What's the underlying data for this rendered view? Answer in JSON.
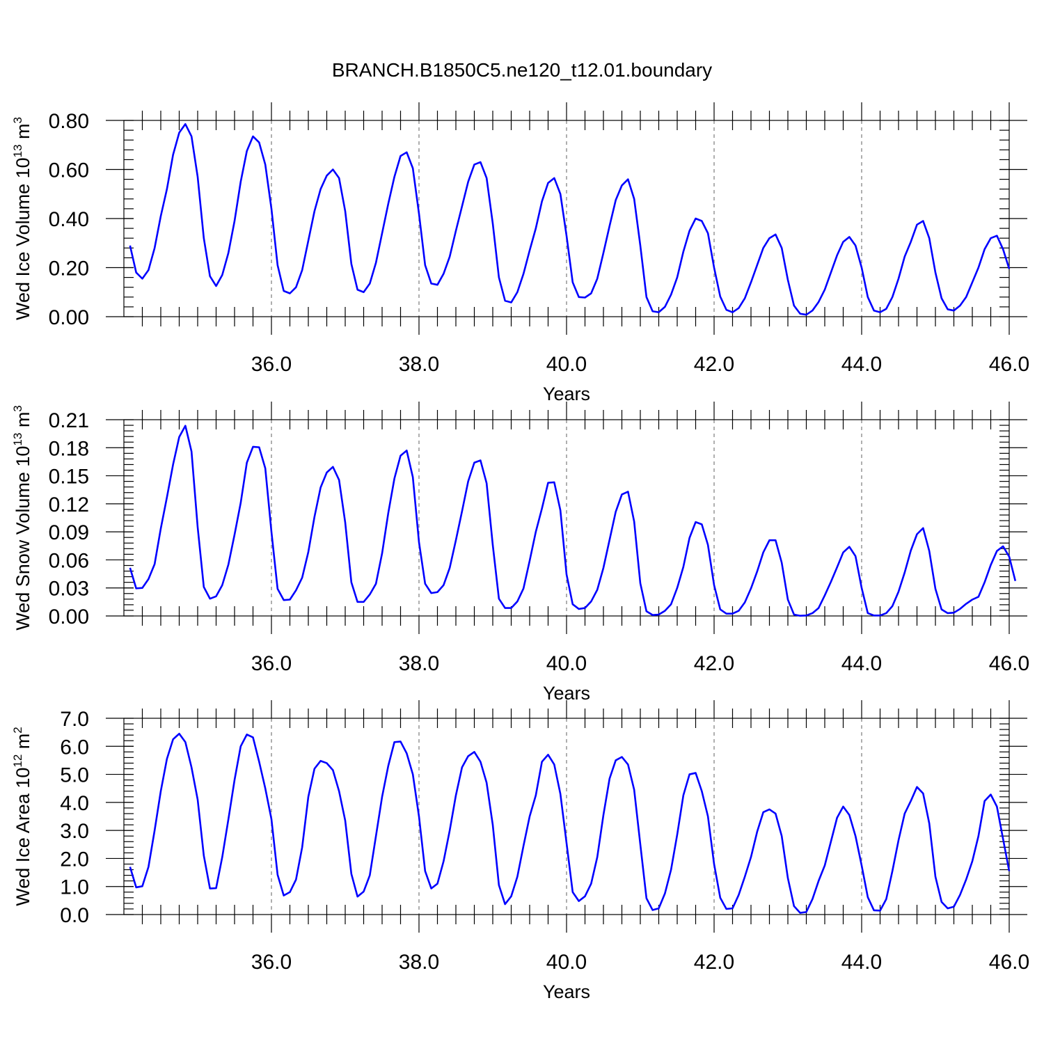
{
  "title": "BRANCH.B1850C5.ne120_t12.01.boundary",
  "chart_data": [
    {
      "type": "line",
      "xlabel": "Years",
      "ylabel": {
        "text": "Wed Ice Volume 10",
        "sup": "13",
        "unit": " m",
        "unit_sup": "3"
      },
      "xlim": [
        34.0,
        46.0
      ],
      "ylim": [
        0.0,
        0.8
      ],
      "x_ticks": [
        36.0,
        38.0,
        40.0,
        42.0,
        44.0,
        46.0
      ],
      "x_tick_labels": [
        "36.0",
        "38.0",
        "40.0",
        "42.0",
        "44.0",
        "46.0"
      ],
      "y_ticks": [
        0.0,
        0.2,
        0.4,
        0.6,
        0.8
      ],
      "y_tick_labels": [
        "0.00",
        "0.20",
        "0.40",
        "0.60",
        "0.80"
      ],
      "y_minor_step": 0.04,
      "grid": "dashed vertical lines at major x ticks",
      "color": "#0000ff",
      "x_start": 34.0833,
      "x_step": 0.083333,
      "values": [
        0.29,
        0.18,
        0.155,
        0.19,
        0.28,
        0.41,
        0.52,
        0.66,
        0.75,
        0.785,
        0.735,
        0.57,
        0.32,
        0.165,
        0.125,
        0.17,
        0.26,
        0.39,
        0.55,
        0.675,
        0.735,
        0.71,
        0.62,
        0.44,
        0.21,
        0.105,
        0.095,
        0.12,
        0.19,
        0.31,
        0.43,
        0.52,
        0.575,
        0.6,
        0.565,
        0.43,
        0.215,
        0.11,
        0.1,
        0.135,
        0.22,
        0.34,
        0.46,
        0.57,
        0.655,
        0.67,
        0.605,
        0.42,
        0.21,
        0.135,
        0.13,
        0.175,
        0.245,
        0.35,
        0.45,
        0.55,
        0.62,
        0.63,
        0.565,
        0.38,
        0.16,
        0.065,
        0.058,
        0.1,
        0.175,
        0.27,
        0.36,
        0.47,
        0.545,
        0.565,
        0.5,
        0.33,
        0.14,
        0.08,
        0.078,
        0.095,
        0.155,
        0.26,
        0.37,
        0.475,
        0.535,
        0.56,
        0.48,
        0.29,
        0.08,
        0.022,
        0.018,
        0.04,
        0.09,
        0.16,
        0.265,
        0.35,
        0.4,
        0.39,
        0.34,
        0.2,
        0.082,
        0.028,
        0.018,
        0.035,
        0.075,
        0.14,
        0.21,
        0.28,
        0.32,
        0.335,
        0.28,
        0.15,
        0.045,
        0.012,
        0.008,
        0.025,
        0.06,
        0.11,
        0.18,
        0.25,
        0.305,
        0.325,
        0.29,
        0.2,
        0.08,
        0.025,
        0.018,
        0.032,
        0.08,
        0.155,
        0.245,
        0.305,
        0.375,
        0.39,
        0.32,
        0.18,
        0.075,
        0.03,
        0.025,
        0.045,
        0.08,
        0.14,
        0.2,
        0.275,
        0.32,
        0.33,
        0.275,
        0.195
      ]
    },
    {
      "type": "line",
      "xlabel": "Years",
      "ylabel": {
        "text": "Wed Snow Volume 10",
        "sup": "13",
        "unit": " m",
        "unit_sup": "3"
      },
      "xlim": [
        34.0,
        46.0
      ],
      "ylim": [
        0.0,
        0.21
      ],
      "x_ticks": [
        36.0,
        38.0,
        40.0,
        42.0,
        44.0,
        46.0
      ],
      "x_tick_labels": [
        "36.0",
        "38.0",
        "40.0",
        "42.0",
        "44.0",
        "46.0"
      ],
      "y_ticks": [
        0.0,
        0.03,
        0.06,
        0.09,
        0.12,
        0.15,
        0.18,
        0.21
      ],
      "y_tick_labels": [
        "0.00",
        "0.03",
        "0.06",
        "0.09",
        "0.12",
        "0.15",
        "0.18",
        "0.21"
      ],
      "y_minor_step": 0.006,
      "grid": "dashed vertical lines at major x ticks",
      "color": "#0000ff",
      "x_start": 34.0833,
      "x_step": 0.083333,
      "values": [
        0.0515,
        0.0295,
        0.03,
        0.0395,
        0.0555,
        0.0935,
        0.127,
        0.162,
        0.1915,
        0.2035,
        0.176,
        0.095,
        0.031,
        0.0185,
        0.021,
        0.033,
        0.055,
        0.087,
        0.121,
        0.164,
        0.181,
        0.1805,
        0.158,
        0.09,
        0.029,
        0.017,
        0.0175,
        0.0275,
        0.041,
        0.0685,
        0.106,
        0.1375,
        0.1535,
        0.1595,
        0.1455,
        0.1,
        0.036,
        0.015,
        0.015,
        0.023,
        0.0345,
        0.067,
        0.11,
        0.147,
        0.1715,
        0.177,
        0.1485,
        0.079,
        0.0345,
        0.0245,
        0.0255,
        0.033,
        0.0515,
        0.081,
        0.112,
        0.144,
        0.164,
        0.1665,
        0.142,
        0.076,
        0.0185,
        0.0085,
        0.0085,
        0.0155,
        0.0295,
        0.059,
        0.09,
        0.115,
        0.1425,
        0.143,
        0.113,
        0.0445,
        0.0125,
        0.0075,
        0.0085,
        0.0155,
        0.028,
        0.0515,
        0.0815,
        0.1115,
        0.13,
        0.133,
        0.101,
        0.035,
        0.005,
        0.001,
        0.0015,
        0.0055,
        0.0125,
        0.03,
        0.0525,
        0.0835,
        0.1005,
        0.098,
        0.076,
        0.033,
        0.007,
        0.0025,
        0.0025,
        0.0055,
        0.0145,
        0.0295,
        0.0475,
        0.068,
        0.081,
        0.081,
        0.057,
        0.0175,
        0.0015,
        0.0002,
        0.0005,
        0.003,
        0.0085,
        0.022,
        0.0365,
        0.052,
        0.068,
        0.074,
        0.064,
        0.03,
        0.003,
        0.0005,
        0.0005,
        0.003,
        0.0105,
        0.026,
        0.0465,
        0.07,
        0.0875,
        0.094,
        0.0695,
        0.029,
        0.007,
        0.003,
        0.0035,
        0.0075,
        0.013,
        0.0175,
        0.0205,
        0.036,
        0.0545,
        0.0695,
        0.0745,
        0.0635,
        0.0375
      ]
    },
    {
      "type": "line",
      "xlabel": "Years",
      "ylabel": {
        "text": "Wed Ice Area 10",
        "sup": "12",
        "unit": " m",
        "unit_sup": "2"
      },
      "xlim": [
        34.0,
        46.0
      ],
      "ylim": [
        0.0,
        7.0
      ],
      "x_ticks": [
        36.0,
        38.0,
        40.0,
        42.0,
        44.0,
        46.0
      ],
      "x_tick_labels": [
        "36.0",
        "38.0",
        "40.0",
        "42.0",
        "44.0",
        "46.0"
      ],
      "y_ticks": [
        0.0,
        1.0,
        2.0,
        3.0,
        4.0,
        5.0,
        6.0,
        7.0
      ],
      "y_tick_labels": [
        "0.0",
        "1.0",
        "2.0",
        "3.0",
        "4.0",
        "5.0",
        "6.0",
        "7.0"
      ],
      "y_minor_step": 0.2,
      "grid": "dashed vertical lines at major x ticks",
      "color": "#0000ff",
      "x_start": 34.0833,
      "x_step": 0.083333,
      "values": [
        1.7,
        0.97,
        1.01,
        1.7,
        3.0,
        4.4,
        5.55,
        6.25,
        6.45,
        6.15,
        5.25,
        4.1,
        2.1,
        0.93,
        0.94,
        2.05,
        3.4,
        4.8,
        6.0,
        6.42,
        6.32,
        5.45,
        4.5,
        3.4,
        1.42,
        0.68,
        0.8,
        1.25,
        2.4,
        4.2,
        5.2,
        5.48,
        5.4,
        5.15,
        4.4,
        3.35,
        1.45,
        0.64,
        0.82,
        1.4,
        2.8,
        4.2,
        5.3,
        6.15,
        6.17,
        5.75,
        5.0,
        3.5,
        1.55,
        0.93,
        1.1,
        1.9,
        3.0,
        4.25,
        5.25,
        5.65,
        5.8,
        5.45,
        4.7,
        3.2,
        1.05,
        0.37,
        0.65,
        1.35,
        2.45,
        3.5,
        4.25,
        5.45,
        5.7,
        5.35,
        4.3,
        2.55,
        0.8,
        0.48,
        0.65,
        1.1,
        2.05,
        3.55,
        4.85,
        5.5,
        5.62,
        5.35,
        4.45,
        2.5,
        0.58,
        0.16,
        0.22,
        0.75,
        1.6,
        2.85,
        4.25,
        5.0,
        5.05,
        4.4,
        3.5,
        1.8,
        0.6,
        0.2,
        0.22,
        0.7,
        1.35,
        2.05,
        2.95,
        3.65,
        3.75,
        3.6,
        2.8,
        1.3,
        0.3,
        0.06,
        0.09,
        0.55,
        1.2,
        1.75,
        2.6,
        3.45,
        3.85,
        3.55,
        2.8,
        1.75,
        0.62,
        0.15,
        0.14,
        0.55,
        1.55,
        2.65,
        3.6,
        4.05,
        4.55,
        4.32,
        3.25,
        1.35,
        0.45,
        0.22,
        0.28,
        0.7,
        1.25,
        1.9,
        2.8,
        4.05,
        4.28,
        3.85,
        2.7,
        1.55
      ]
    }
  ]
}
